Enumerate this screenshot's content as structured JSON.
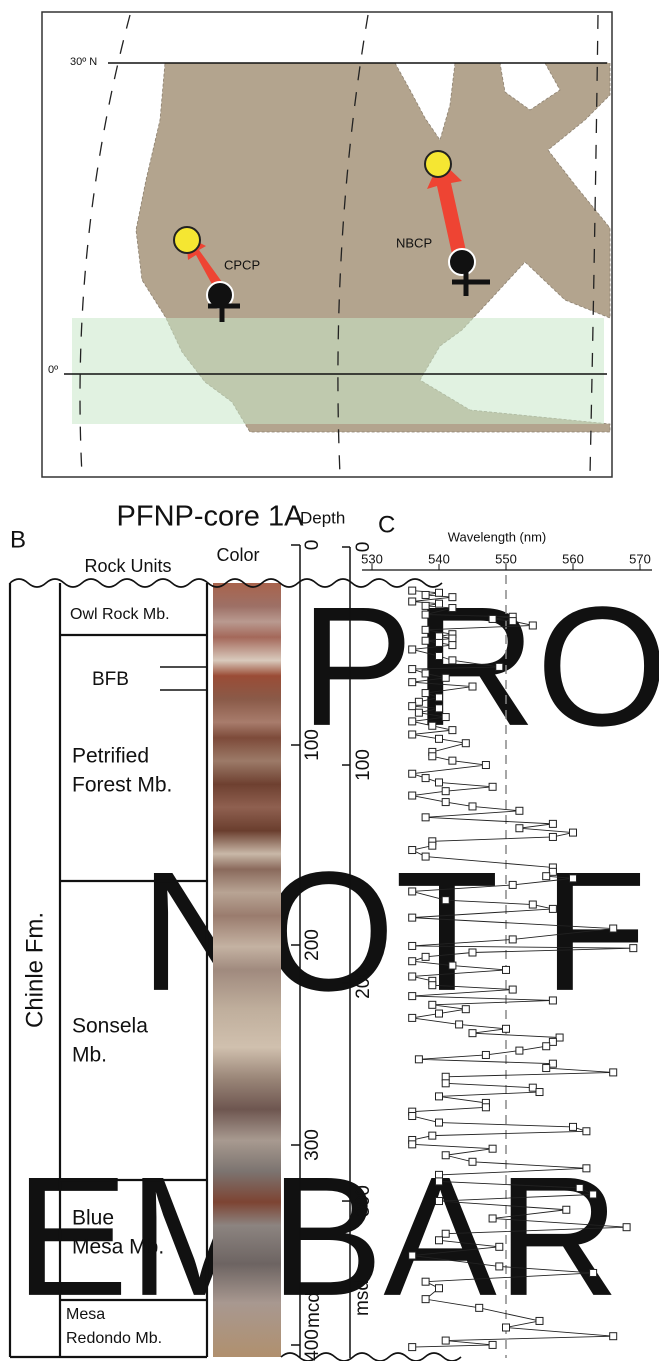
{
  "map": {
    "lat_north": "30º N",
    "lat_equator": "0º",
    "sites": [
      "CPCP",
      "NBCP"
    ]
  },
  "core": {
    "panel": "B",
    "title": "PFNP-core 1A",
    "rock_units_header": "Rock Units",
    "color_header": "Color",
    "formation": "Chinle Fm.",
    "units": [
      [
        "Owl Rock Mb."
      ],
      [
        "BFB"
      ],
      [
        "Petrified",
        "Forest Mb."
      ],
      [
        "Sonsela",
        "Mb."
      ],
      [
        "Blue",
        "Mesa Mb."
      ],
      [
        "Mesa",
        "Redondo Mb."
      ]
    ],
    "depth_header": "Depth",
    "depth_label": "mcd",
    "depth_ticks": [
      0,
      100,
      200,
      300,
      400
    ],
    "depth_lim": [
      0,
      406
    ]
  },
  "watermark": [
    "PRO",
    "NOT F",
    "EMBAR"
  ],
  "chart_data": {
    "type": "line",
    "panel": "C",
    "xlabel": "Wavelength (nm)",
    "ylabel": "msd",
    "xlim": [
      530,
      570
    ],
    "xticks": [
      530,
      540,
      550,
      560,
      570
    ],
    "ylim": [
      0,
      372
    ],
    "yticks": [
      0,
      100,
      200,
      300
    ],
    "y_inverted": true,
    "reference_x": 550,
    "color": "#222222",
    "x": [
      536,
      540,
      538,
      542,
      536,
      540,
      538,
      542,
      538,
      551,
      548,
      551,
      554,
      538,
      542,
      540,
      542,
      538,
      540,
      542,
      536,
      540,
      542,
      549,
      536,
      538,
      541,
      536,
      545,
      538,
      540,
      537,
      536,
      540,
      537,
      541,
      536,
      539,
      542,
      536,
      540,
      544,
      539,
      539,
      542,
      547,
      536,
      538,
      540,
      548,
      541,
      536,
      541,
      545,
      552,
      538,
      557,
      552,
      560,
      557,
      539,
      539,
      536,
      538,
      557,
      557,
      556,
      560,
      551,
      536,
      541,
      554,
      557,
      536,
      566,
      551,
      536,
      569,
      545,
      538,
      536,
      542,
      550,
      536,
      539,
      539,
      551,
      536,
      557,
      539,
      544,
      540,
      536,
      543,
      550,
      545,
      558,
      557,
      556,
      552,
      547,
      537,
      557,
      556,
      566,
      541,
      541,
      554,
      555,
      540,
      547,
      547,
      536,
      536,
      540,
      560,
      562,
      539,
      536,
      536,
      548,
      541,
      545,
      562,
      540,
      540,
      561,
      563,
      540,
      559,
      548,
      568,
      541,
      540,
      549,
      536,
      549,
      563,
      538,
      540,
      538,
      546,
      555,
      550,
      566,
      541,
      548,
      536
    ],
    "values": [
      20,
      21,
      22,
      23,
      25,
      26,
      27,
      28,
      31,
      32,
      33,
      34,
      36,
      38,
      40,
      41,
      42,
      43,
      44,
      45,
      47,
      50,
      52,
      55,
      56,
      58,
      60,
      62,
      64,
      67,
      69,
      71,
      73,
      74,
      76,
      78,
      80,
      82,
      84,
      86,
      88,
      90,
      94,
      96,
      98,
      100,
      104,
      106,
      108,
      110,
      112,
      114,
      117,
      119,
      121,
      124,
      127,
      129,
      131,
      133,
      135,
      137,
      139,
      142,
      147,
      149,
      151,
      152,
      155,
      158,
      162,
      164,
      166,
      170,
      175,
      180,
      183,
      184,
      186,
      188,
      190,
      192,
      194,
      197,
      199,
      201,
      203,
      206,
      208,
      210,
      212,
      214,
      216,
      219,
      221,
      223,
      225,
      227,
      229,
      231,
      233,
      235,
      237,
      239,
      241,
      243,
      246,
      248,
      250,
      252,
      255,
      257,
      259,
      261,
      264,
      266,
      268,
      270,
      272,
      274,
      276,
      279,
      282,
      285,
      288,
      291,
      294,
      297,
      300,
      304,
      308,
      312,
      315,
      318,
      321,
      325,
      330,
      333,
      337,
      340,
      345,
      349,
      355,
      358,
      362,
      364,
      366,
      367
    ]
  }
}
